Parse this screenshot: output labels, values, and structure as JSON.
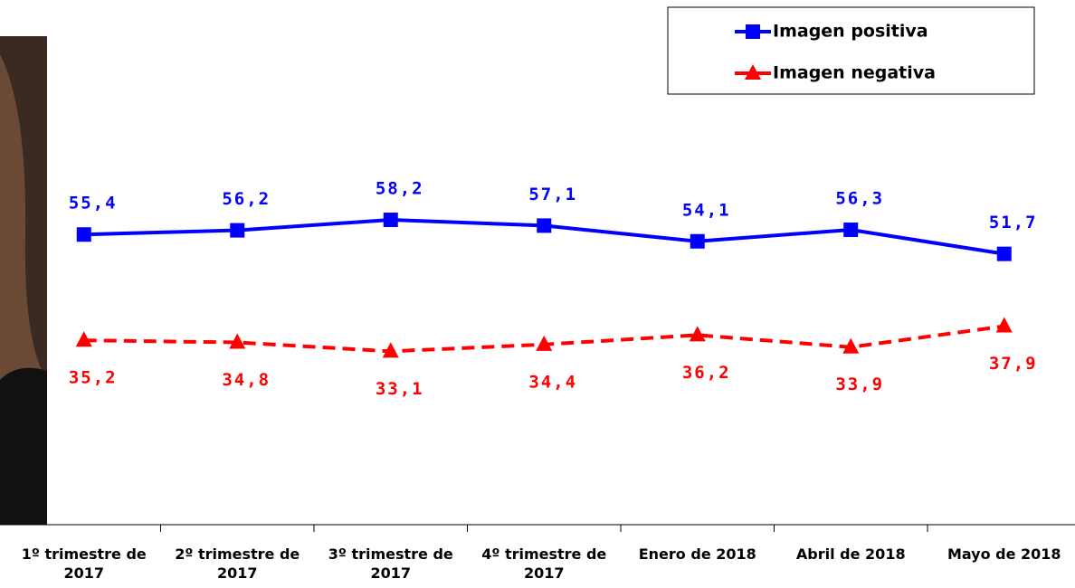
{
  "chart_data": {
    "type": "line",
    "categories": [
      "1º trimestre de 2017",
      "2º trimestre de 2017",
      "3º trimestre de 2017",
      "4º trimestre de 2017",
      "Enero de 2018",
      "Abril de 2018",
      "Mayo de 2018"
    ],
    "series": [
      {
        "name": "Imagen positiva",
        "color": "#0000ff",
        "values": [
          55.4,
          56.2,
          58.2,
          57.1,
          54.1,
          56.3,
          51.7
        ],
        "value_labels": [
          "55,4",
          "56,2",
          "58,2",
          "57,1",
          "54,1",
          "56,3",
          "51,7"
        ]
      },
      {
        "name": "Imagen negativa",
        "color": "#ff0000",
        "values": [
          35.2,
          34.8,
          33.1,
          34.4,
          36.2,
          33.9,
          37.9
        ],
        "value_labels": [
          "35,2",
          "34,8",
          "33,1",
          "34,4",
          "36,2",
          "33,9",
          "37,9"
        ]
      }
    ],
    "ylim": [
      0,
      100
    ],
    "legend": "top-right"
  }
}
